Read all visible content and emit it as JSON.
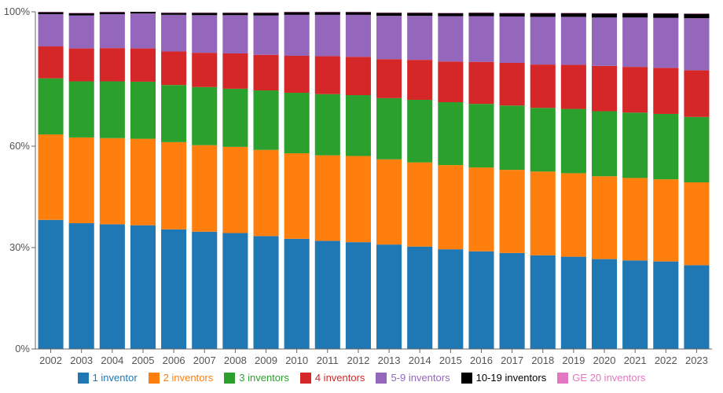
{
  "chart_data": {
    "type": "bar",
    "stacked": true,
    "categories": [
      "2002",
      "2003",
      "2004",
      "2005",
      "2006",
      "2007",
      "2008",
      "2009",
      "2010",
      "2011",
      "2012",
      "2013",
      "2014",
      "2015",
      "2016",
      "2017",
      "2018",
      "2019",
      "2020",
      "2021",
      "2022",
      "2023"
    ],
    "ylim": [
      0,
      100
    ],
    "ytick_labels": [
      "0%",
      "30%",
      "60%",
      "100%"
    ],
    "ytick_values": [
      0,
      30,
      60,
      100
    ],
    "legend_position": "bottom",
    "series": [
      {
        "name": "1 inventor",
        "color": "#1f77b4",
        "values": [
          38.2,
          37.2,
          36.9,
          36.6,
          35.4,
          34.7,
          34.3,
          33.4,
          32.6,
          32.0,
          31.6,
          30.9,
          30.3,
          29.5,
          28.9,
          28.4,
          27.7,
          27.3,
          26.6,
          26.2,
          25.9,
          24.8
        ]
      },
      {
        "name": "2 inventors",
        "color": "#ff7f0e",
        "values": [
          25.3,
          25.4,
          25.5,
          25.6,
          25.8,
          25.6,
          25.5,
          25.5,
          25.3,
          25.3,
          25.5,
          25.2,
          24.9,
          24.9,
          24.8,
          24.6,
          24.8,
          24.7,
          24.5,
          24.4,
          24.3,
          24.5
        ]
      },
      {
        "name": "3 inventors",
        "color": "#2ca02c",
        "values": [
          16.7,
          16.7,
          16.9,
          17.0,
          17.0,
          17.3,
          17.3,
          17.7,
          18.0,
          18.2,
          18.1,
          18.2,
          18.6,
          18.7,
          18.9,
          19.1,
          18.9,
          19.1,
          19.3,
          19.4,
          19.4,
          19.4
        ]
      },
      {
        "name": "4 inventors",
        "color": "#d62728",
        "values": [
          9.5,
          9.8,
          9.9,
          9.9,
          10.0,
          10.2,
          10.5,
          10.6,
          11.0,
          11.3,
          11.4,
          11.6,
          11.9,
          12.1,
          12.5,
          12.7,
          12.9,
          13.1,
          13.5,
          13.6,
          13.7,
          13.9
        ]
      },
      {
        "name": "5-9 inventors",
        "color": "#9467bd",
        "values": [
          9.6,
          9.8,
          10.1,
          10.4,
          10.9,
          11.2,
          11.4,
          11.7,
          12.2,
          12.3,
          12.5,
          12.9,
          13.1,
          13.5,
          13.6,
          13.8,
          14.2,
          14.3,
          14.4,
          14.7,
          14.9,
          15.5
        ]
      },
      {
        "name": "10-19 inventors",
        "color": "#000000",
        "values": [
          0.6,
          0.7,
          0.6,
          0.6,
          0.6,
          0.7,
          0.7,
          0.8,
          0.8,
          0.8,
          0.8,
          0.9,
          0.9,
          0.9,
          1.0,
          1.0,
          1.1,
          1.1,
          1.2,
          1.3,
          1.3,
          1.3
        ]
      },
      {
        "name": "GE 20 inventors",
        "color": "#e377c2",
        "values": [
          0.1,
          0.1,
          0.1,
          0.1,
          0.1,
          0.1,
          0.1,
          0.1,
          0.1,
          0.1,
          0.1,
          0.1,
          0.1,
          0.1,
          0.1,
          0.1,
          0.1,
          0.1,
          0.1,
          0.1,
          0.1,
          0.1
        ]
      }
    ]
  }
}
